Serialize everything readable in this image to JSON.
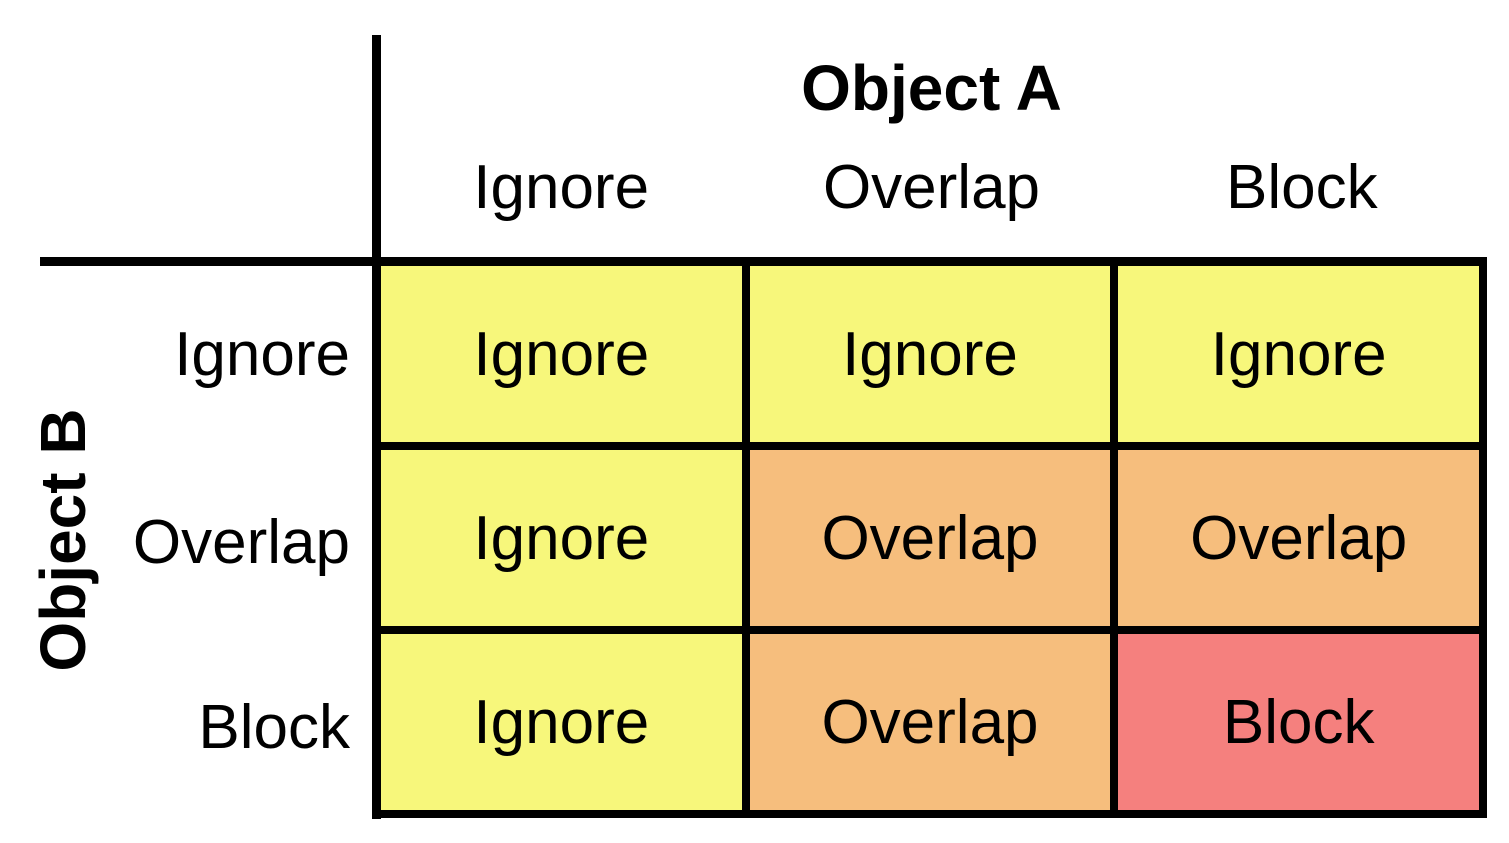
{
  "matrix": {
    "col_axis_title": "Object A",
    "row_axis_title": "Object B",
    "col_headers": [
      "Ignore",
      "Overlap",
      "Block"
    ],
    "row_headers": [
      "Ignore",
      "Overlap",
      "Block"
    ],
    "rows": [
      {
        "header": "Ignore",
        "cells": [
          {
            "label": "Ignore",
            "type": "ignore",
            "color": "#F7F77B"
          },
          {
            "label": "Ignore",
            "type": "ignore",
            "color": "#F7F77B"
          },
          {
            "label": "Ignore",
            "type": "ignore",
            "color": "#F7F77B"
          }
        ]
      },
      {
        "header": "Overlap",
        "cells": [
          {
            "label": "Ignore",
            "type": "ignore",
            "color": "#F7F77B"
          },
          {
            "label": "Overlap",
            "type": "overlap",
            "color": "#F6BE7D"
          },
          {
            "label": "Overlap",
            "type": "overlap",
            "color": "#F6BE7D"
          }
        ]
      },
      {
        "header": "Block",
        "cells": [
          {
            "label": "Ignore",
            "type": "ignore",
            "color": "#F7F77B"
          },
          {
            "label": "Overlap",
            "type": "overlap",
            "color": "#F6BE7D"
          },
          {
            "label": "Block",
            "type": "block",
            "color": "#F5807E"
          }
        ]
      }
    ],
    "colors": {
      "ignore": "#F7F77B",
      "overlap": "#F6BE7D",
      "block": "#F5807E",
      "line": "#000000",
      "background": "#FFFFFF"
    }
  }
}
